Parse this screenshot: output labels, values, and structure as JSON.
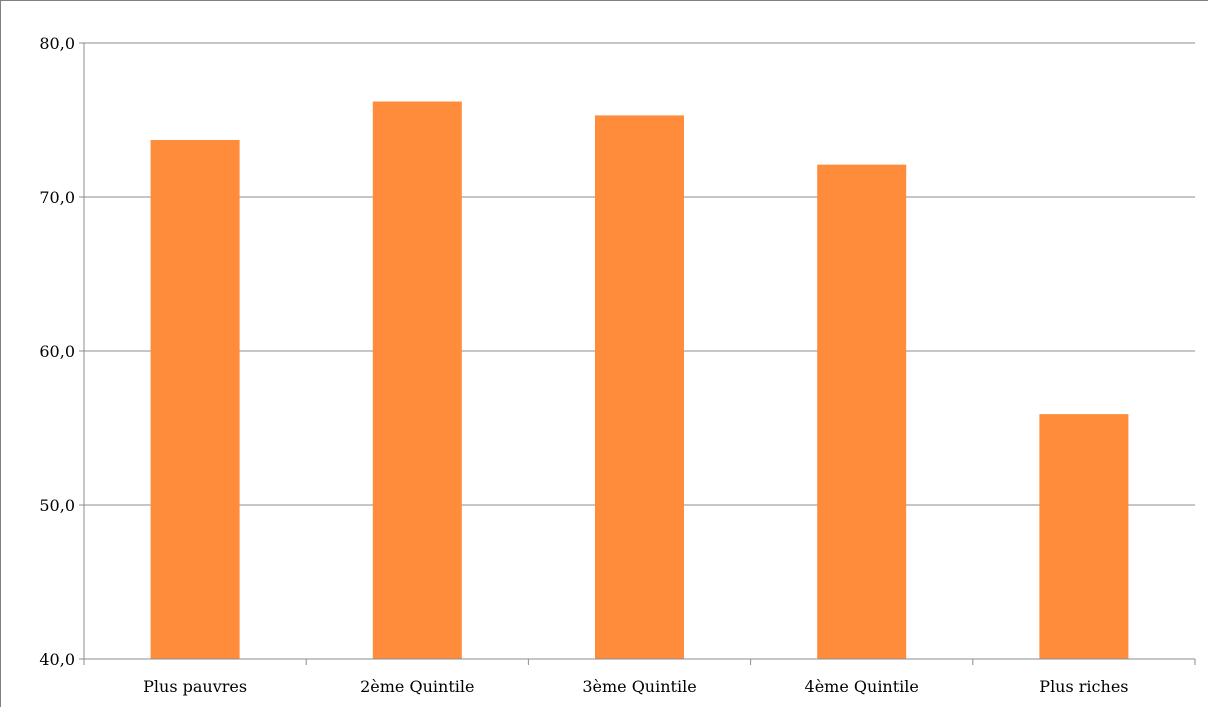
{
  "chart_data": {
    "type": "bar",
    "title": "",
    "xlabel": "",
    "ylabel": "",
    "categories": [
      "Plus pauvres",
      "2ème Quintile",
      "3ème Quintile",
      "4ème Quintile",
      "Plus riches"
    ],
    "values": [
      73.7,
      76.2,
      75.3,
      72.1,
      55.9
    ],
    "ylim": [
      40,
      80
    ],
    "yticks": [
      "40,0",
      "50,0",
      "60,0",
      "70,0",
      "80,0"
    ],
    "grid": true,
    "legend": "none",
    "colors": {
      "bar": "#ff8c3a",
      "grid": "#8c8c8c",
      "axis": "#8c8c8c"
    }
  }
}
